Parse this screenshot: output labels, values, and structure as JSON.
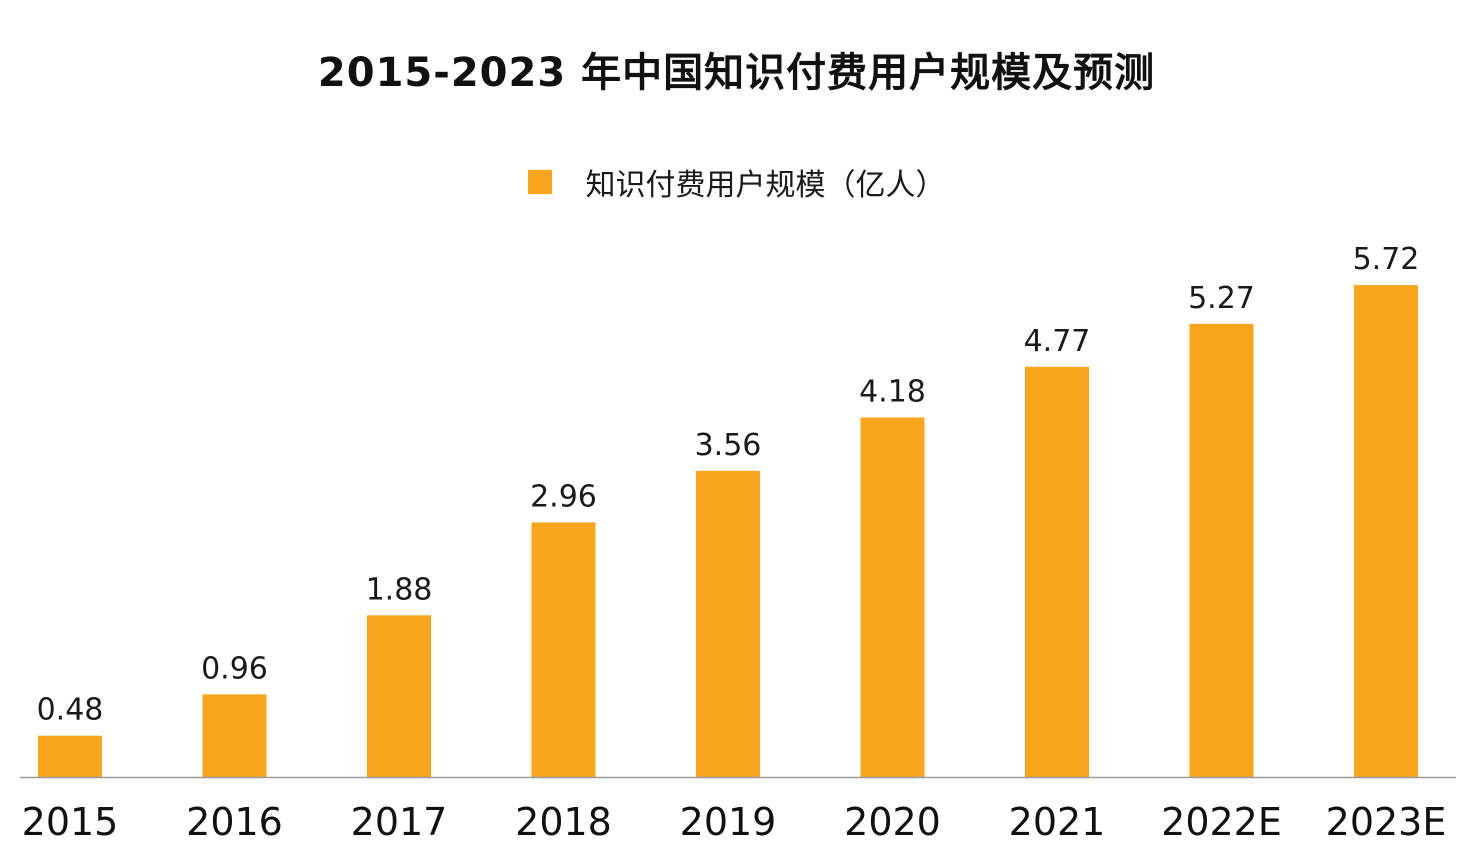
{
  "chart_data": {
    "type": "bar",
    "title": "2015-2023 年中国知识付费用户规模及预测",
    "categories": [
      "2015",
      "2016",
      "2017",
      "2018",
      "2019",
      "2020",
      "2021",
      "2022E",
      "2023E"
    ],
    "series": [
      {
        "name": "知识付费用户规模（亿人）",
        "values": [
          0.48,
          0.96,
          1.88,
          2.96,
          3.56,
          4.18,
          4.77,
          5.27,
          5.72
        ],
        "color": "#F9A51E"
      }
    ],
    "value_labels": [
      "0.48",
      "0.96",
      "1.88",
      "2.96",
      "3.56",
      "4.18",
      "4.77",
      "5.27",
      "5.72"
    ],
    "xlabel": "",
    "ylabel": "",
    "ylim": [
      0,
      6
    ],
    "legend_position": "top-center",
    "grid": false,
    "colors": {
      "bar": "#F9A51E",
      "axis_line": "#9a9a9a"
    }
  }
}
